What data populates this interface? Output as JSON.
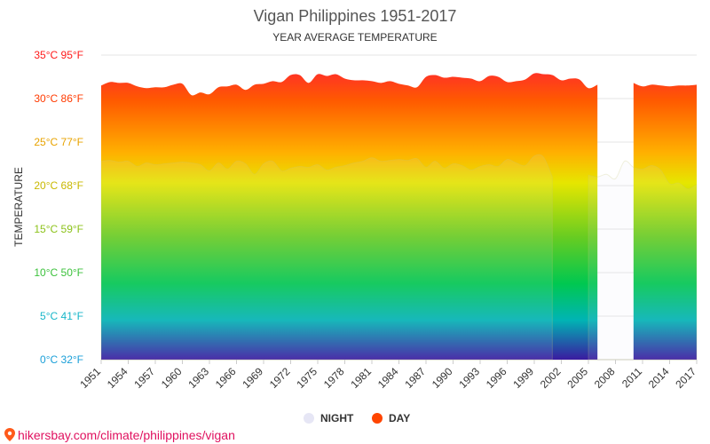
{
  "chart_data": {
    "type": "area",
    "title": "Vigan Philippines 1951-2017",
    "subtitle": "YEAR AVERAGE TEMPERATURE",
    "ylabel": "TEMPERATURE",
    "xlabel": "",
    "ylim": [
      0,
      35
    ],
    "y_ticks": [
      {
        "value": 0,
        "label": "0°C 32°F",
        "color": "#1a9fd8"
      },
      {
        "value": 5,
        "label": "5°C 41°F",
        "color": "#18b6c9"
      },
      {
        "value": 10,
        "label": "10°C 50°F",
        "color": "#3cc23c"
      },
      {
        "value": 15,
        "label": "15°C 59°F",
        "color": "#8cc21a"
      },
      {
        "value": 20,
        "label": "20°C 68°F",
        "color": "#c9b800"
      },
      {
        "value": 25,
        "label": "25°C 77°F",
        "color": "#e8a300"
      },
      {
        "value": 30,
        "label": "30°C 86°F",
        "color": "#ff3a00"
      },
      {
        "value": 35,
        "label": "35°C 95°F",
        "color": "#ff1a1a"
      }
    ],
    "x_tick_labels": [
      "1951",
      "1954",
      "1957",
      "1960",
      "1963",
      "1966",
      "1969",
      "1972",
      "1975",
      "1978",
      "1981",
      "1984",
      "1987",
      "1990",
      "1993",
      "1996",
      "1999",
      "2002",
      "2005",
      "2008",
      "2011",
      "2014",
      "2017"
    ],
    "x": [
      1951,
      1952,
      1953,
      1954,
      1955,
      1956,
      1957,
      1958,
      1959,
      1960,
      1961,
      1962,
      1963,
      1964,
      1965,
      1966,
      1967,
      1968,
      1969,
      1970,
      1971,
      1972,
      1973,
      1974,
      1975,
      1976,
      1977,
      1978,
      1979,
      1980,
      1981,
      1982,
      1983,
      1984,
      1985,
      1986,
      1987,
      1988,
      1989,
      1990,
      1991,
      1992,
      1993,
      1994,
      1995,
      1996,
      1997,
      1998,
      1999,
      2000,
      2001,
      2002,
      2003,
      2004,
      2005,
      2006,
      2007,
      2008,
      2009,
      2010,
      2011,
      2012,
      2013,
      2014,
      2015,
      2016,
      2017
    ],
    "series": [
      {
        "name": "DAY",
        "color": "#ff4500",
        "values": [
          31.5,
          31.9,
          31.8,
          31.8,
          31.4,
          31.2,
          31.3,
          31.3,
          31.6,
          31.7,
          30.4,
          30.7,
          30.5,
          31.3,
          31.4,
          31.6,
          31.0,
          31.6,
          31.7,
          32.0,
          31.9,
          32.7,
          32.7,
          31.8,
          32.8,
          32.6,
          32.8,
          32.3,
          32.1,
          32.1,
          32.0,
          31.8,
          32.0,
          31.7,
          31.5,
          31.3,
          32.5,
          32.7,
          32.4,
          32.5,
          32.4,
          32.3,
          32.0,
          32.6,
          32.5,
          31.9,
          32.0,
          32.2,
          32.9,
          32.8,
          32.7,
          32.1,
          32.3,
          32.2,
          31.2,
          31.6,
          null,
          null,
          null,
          31.8,
          31.4,
          31.6,
          31.5,
          31.4,
          31.5,
          31.5,
          31.6
        ]
      },
      {
        "name": "NIGHT",
        "color": "#e6e6f5",
        "values": [
          22.8,
          22.9,
          22.7,
          22.8,
          22.2,
          22.6,
          22.4,
          22.5,
          22.6,
          22.7,
          22.6,
          22.4,
          21.7,
          22.6,
          21.9,
          22.8,
          22.5,
          21.3,
          22.5,
          22.8,
          21.7,
          22.0,
          22.2,
          22.1,
          22.4,
          21.8,
          22.1,
          22.3,
          22.6,
          22.8,
          23.2,
          22.8,
          22.9,
          23.0,
          22.9,
          23.1,
          22.1,
          22.8,
          22.0,
          22.5,
          22.3,
          21.8,
          22.2,
          22.4,
          22.2,
          23.0,
          22.6,
          22.3,
          23.4,
          23.3,
          21.0,
          null,
          null,
          null,
          21.2,
          21.0,
          21.3,
          20.8,
          22.8,
          22.1,
          21.9,
          22.3,
          21.8,
          20.2,
          20.3,
          19.6,
          20.1
        ]
      }
    ],
    "legend": {
      "position": "bottom-center",
      "items": [
        {
          "label": "NIGHT",
          "color": "#e6e6f5"
        },
        {
          "label": "DAY",
          "color": "#ff4500"
        }
      ]
    },
    "grid": true
  },
  "source_text": "hikersbay.com/climate/philippines/vigan",
  "colors": {
    "gradient_top": "#ff1a3c",
    "gradient_orange": "#ff8c00",
    "gradient_yellow": "#f5e600",
    "gradient_green": "#00c850",
    "gradient_teal": "#00b4b4",
    "gradient_bottom": "#3a1aa0",
    "cold_top": "#00ff66",
    "cold_cyan": "#00ffff",
    "cold_bottom": "#0033ff",
    "grid": "#e6e6e6"
  }
}
